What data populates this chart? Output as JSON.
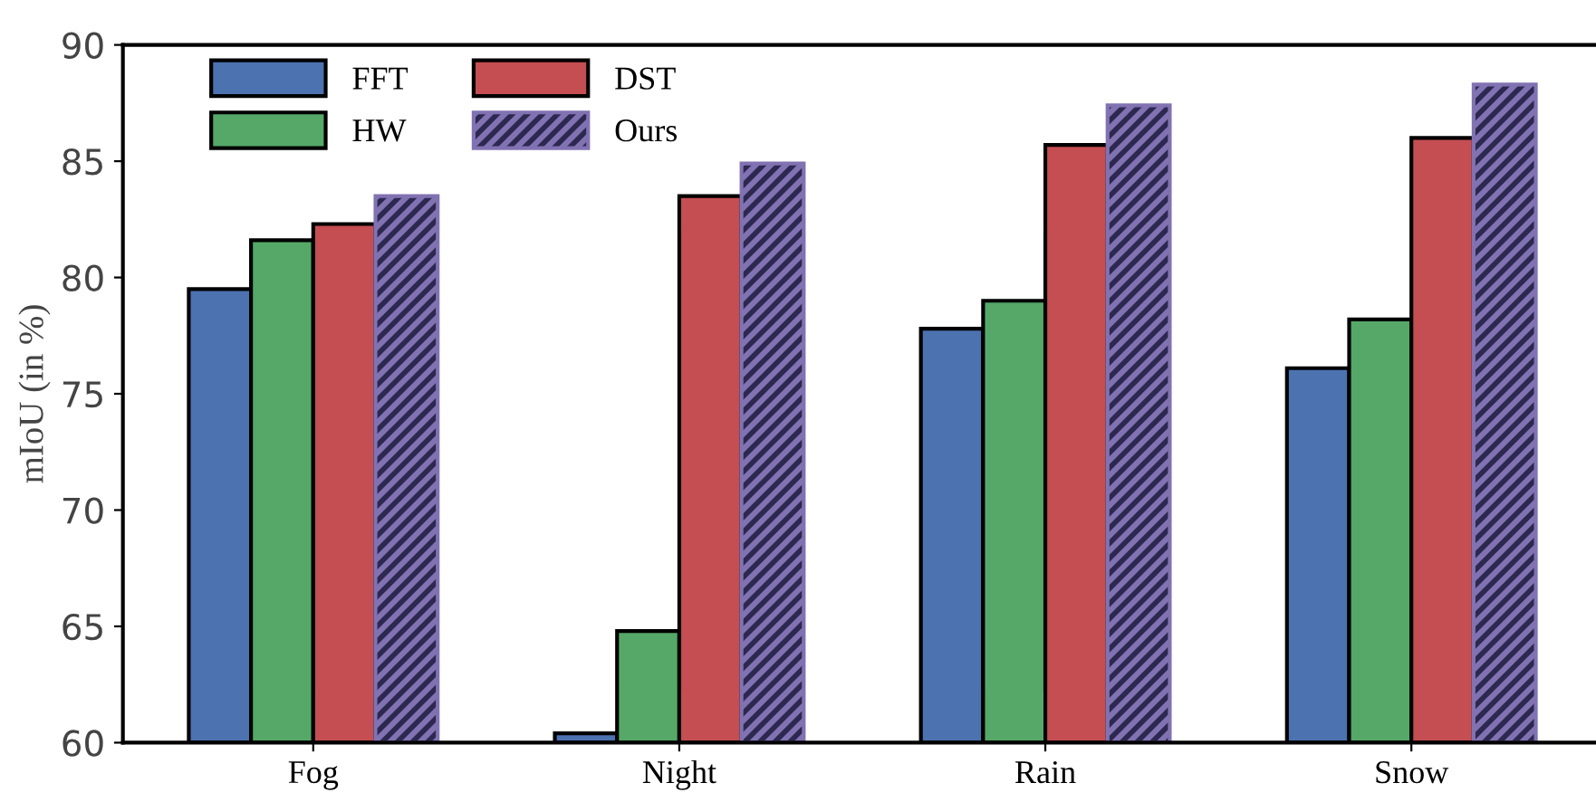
{
  "chart_data": {
    "type": "bar",
    "ylabel": "mIoU (in %)",
    "categories": [
      "Fog",
      "Night",
      "Rain",
      "Snow"
    ],
    "series": [
      {
        "name": "FFT",
        "color": "#4c72b0",
        "values": [
          79.5,
          60.4,
          77.8,
          76.1
        ]
      },
      {
        "name": "HW",
        "color": "#55a868",
        "values": [
          81.6,
          64.8,
          79.0,
          78.2
        ]
      },
      {
        "name": "DST",
        "color": "#c44e52",
        "values": [
          82.3,
          83.5,
          85.7,
          86.0
        ]
      },
      {
        "name": "Ours",
        "color": "#8172b2",
        "values": [
          83.5,
          84.9,
          87.4,
          88.3
        ]
      }
    ],
    "ylim": [
      60,
      90
    ],
    "yticks": [
      60,
      65,
      70,
      75,
      80,
      85,
      90
    ],
    "grid": false,
    "legend": "top left"
  }
}
